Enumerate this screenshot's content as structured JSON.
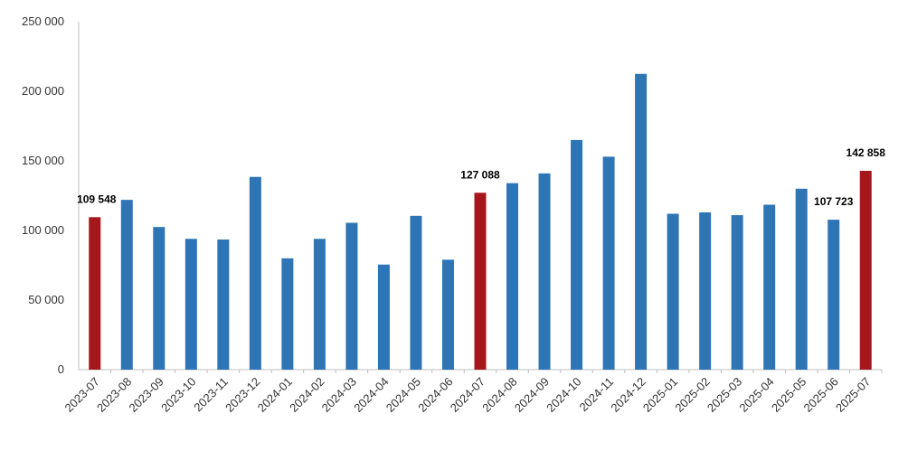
{
  "chart_data": {
    "type": "bar",
    "categories": [
      "2023-07",
      "2023-08",
      "2023-09",
      "2023-10",
      "2023-11",
      "2023-12",
      "2024-01",
      "2024-02",
      "2024-03",
      "2024-04",
      "2024-05",
      "2024-06",
      "2024-07",
      "2024-08",
      "2024-09",
      "2024-10",
      "2024-11",
      "2024-12",
      "2025-01",
      "2025-02",
      "2025-03",
      "2025-04",
      "2025-05",
      "2025-06",
      "2025-07"
    ],
    "values": [
      109548,
      122000,
      102500,
      94000,
      93500,
      138500,
      80000,
      94000,
      105500,
      75500,
      110500,
      79000,
      127088,
      134000,
      141000,
      165000,
      153000,
      212500,
      112000,
      113000,
      111000,
      118500,
      130000,
      107723,
      142858
    ],
    "highlight_indices": [
      0,
      12,
      24
    ],
    "data_labels": [
      {
        "index": 0,
        "text": "109 548"
      },
      {
        "index": 12,
        "text": "127 088"
      },
      {
        "index": 23,
        "text": "107 723"
      },
      {
        "index": 24,
        "text": "142 858"
      }
    ],
    "yticks": [
      0,
      50000,
      100000,
      150000,
      200000,
      250000
    ],
    "ytick_labels": [
      "0",
      "50 000",
      "100 000",
      "150 000",
      "200 000",
      "250 000"
    ],
    "ylim": [
      0,
      250000
    ],
    "title": "",
    "xlabel": "",
    "ylabel": "",
    "grid": false,
    "legend": "none",
    "colors": {
      "bar": "#2E75B6",
      "highlight": "#A6171C",
      "axis": "#BFBFBF"
    }
  }
}
